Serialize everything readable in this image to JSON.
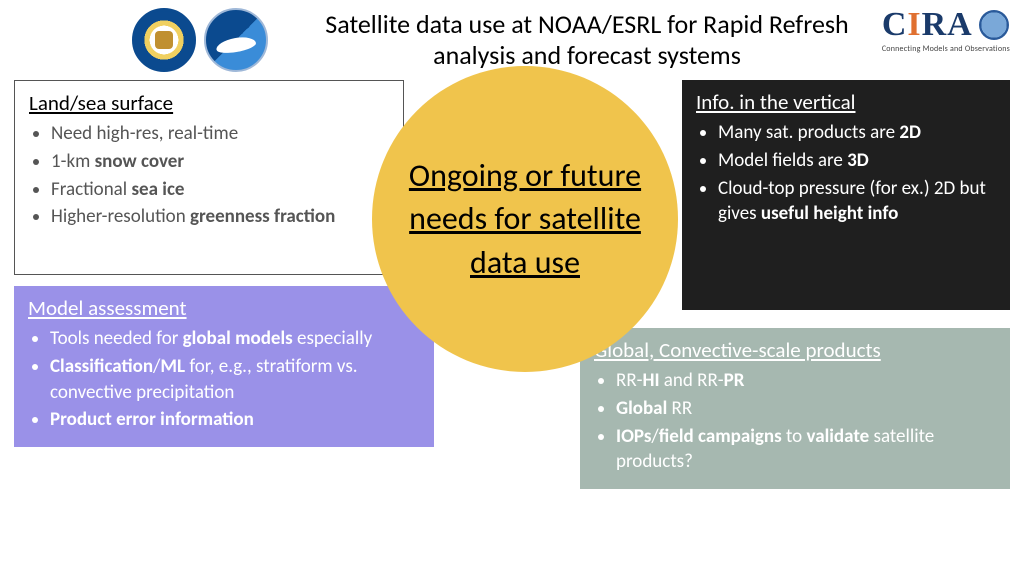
{
  "title": "Satellite data use at NOAA/ESRL for Rapid Refresh analysis and forecast systems",
  "logos": {
    "seal_name": "commerce-seal-icon",
    "noaa_name": "noaa-logo-icon",
    "cira_main": "CIRA",
    "cira_sub": "Connecting Models and Observations"
  },
  "circle": "Ongoing or future needs for satellite data use",
  "boxes": {
    "landsea": {
      "heading": "Land/sea surface",
      "bg": "#ffffff",
      "fg": "#555555",
      "border": "#555555",
      "items": [
        {
          "pre": "Need high-res, real-time",
          "bold": "",
          "post": ""
        },
        {
          "pre": "1-km ",
          "bold": "snow cover",
          "post": ""
        },
        {
          "pre": "Fractional ",
          "bold": "sea ice",
          "post": ""
        },
        {
          "pre": "Higher-resolution ",
          "bold": "greenness fraction",
          "post": ""
        }
      ]
    },
    "vertical": {
      "heading": "Info. in the vertical",
      "bg": "#1f1f1f",
      "fg": "#ffffff",
      "items": [
        {
          "pre": "Many sat. products are ",
          "bold": "2D",
          "post": ""
        },
        {
          "pre": "Model fields are ",
          "bold": "3D",
          "post": ""
        },
        {
          "pre": "Cloud-top pressure (for ex.) 2D but gives ",
          "bold": "useful height info",
          "post": ""
        }
      ]
    },
    "model": {
      "heading": "Model assessment",
      "bg": "#9a91e8",
      "fg": "#ffffff",
      "items": [
        {
          "pre": "Tools needed for ",
          "bold": "global models",
          "post": " especially"
        },
        {
          "pre": "",
          "bold": "Classification",
          "post": "/",
          "bold2": "ML",
          "post2": " for, e.g., stratiform vs. convective precipitation"
        },
        {
          "pre": "",
          "bold": "Product error information",
          "post": ""
        }
      ]
    },
    "global": {
      "heading": "Global, Convective-scale products",
      "bg": "#a6b8b0",
      "fg": "#ffffff",
      "items": [
        {
          "pre": "RR-",
          "bold": "HI",
          "post": " and RR-",
          "bold2": "PR",
          "post2": ""
        },
        {
          "pre": "",
          "bold": "Global",
          "post": " RR"
        },
        {
          "pre": "",
          "bold": "IOPs",
          "post": "/",
          "bold2": "field campaigns",
          "post2": " to ",
          "bold3": "validate",
          "post3": " satellite products?"
        }
      ]
    }
  },
  "colors": {
    "circle_bg": "#f0c44c",
    "title_color": "#000000"
  }
}
